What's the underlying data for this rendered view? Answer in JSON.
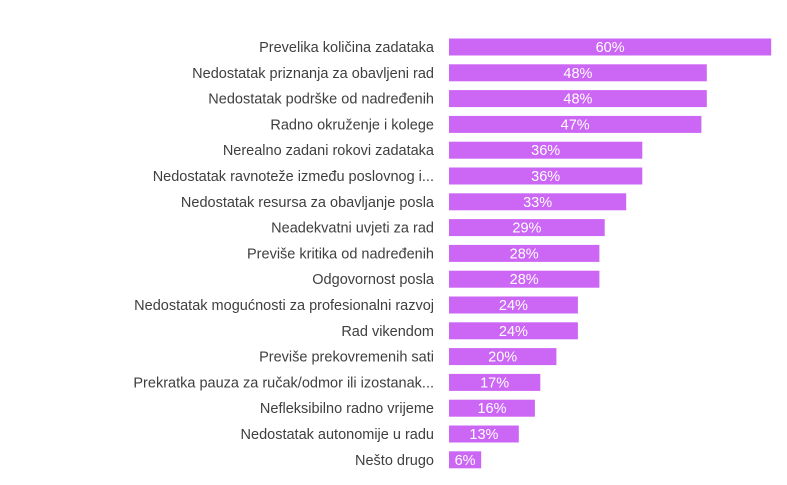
{
  "chart_data": {
    "type": "bar",
    "orientation": "horizontal",
    "categories": [
      "Prevelika količina zadataka",
      "Nedostatak priznanja za obavljeni rad",
      "Nedostatak podrške od nadređenih",
      "Radno okruženje i kolege",
      "Nerealno zadani rokovi zadataka",
      "Nedostatak ravnoteže između poslovnog i...",
      "Nedostatak resursa za obavljanje posla",
      "Neadekvatni uvjeti za rad",
      "Previše kritika od nadređenih",
      "Odgovornost posla",
      "Nedostatak mogućnosti za profesionalni razvoj",
      "Rad vikendom",
      "Previše prekovremenih sati",
      "Prekratka pauza za ručak/odmor ili izostanak...",
      "Nefleksibilno radno vrijeme",
      "Nedostatak autonomije u radu",
      "Nešto drugo"
    ],
    "values": [
      60,
      48,
      48,
      47,
      36,
      36,
      33,
      29,
      28,
      28,
      24,
      24,
      20,
      17,
      16,
      13,
      6
    ],
    "data_labels": [
      "60%",
      "48%",
      "48%",
      "47%",
      "36%",
      "36%",
      "33%",
      "29%",
      "28%",
      "28%",
      "24%",
      "24%",
      "20%",
      "17%",
      "16%",
      "13%",
      "6%"
    ],
    "value_unit": "%",
    "grid": false,
    "legend": "none",
    "bar_color": "#cc66f4",
    "label_color": "#3f3f3f",
    "data_label_color": "#ffffff"
  }
}
